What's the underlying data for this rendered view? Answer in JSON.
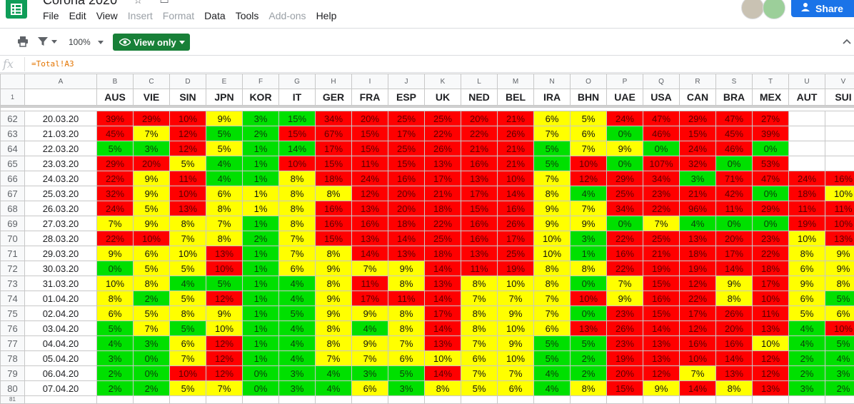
{
  "app": {
    "doc_title": "Corona 2020",
    "menu": [
      {
        "label": "File",
        "enabled": true
      },
      {
        "label": "Edit",
        "enabled": true
      },
      {
        "label": "View",
        "enabled": true
      },
      {
        "label": "Insert",
        "enabled": false
      },
      {
        "label": "Format",
        "enabled": false
      },
      {
        "label": "Data",
        "enabled": true
      },
      {
        "label": "Tools",
        "enabled": true
      },
      {
        "label": "Add-ons",
        "enabled": false
      },
      {
        "label": "Help",
        "enabled": true
      }
    ],
    "share_label": "Share"
  },
  "toolbar": {
    "zoom": "100%",
    "view_only_label": "View only"
  },
  "formula_bar": {
    "fx_label": "fx",
    "formula": "=Total!A3"
  },
  "colors": {
    "r": "#ff0000",
    "y": "#ffff00",
    "g": "#00e000",
    "brand_green": "#0f9d58",
    "share_blue": "#1a73e8",
    "view_only_green": "#188038"
  },
  "sheet": {
    "column_letters": [
      "A",
      "B",
      "C",
      "D",
      "E",
      "F",
      "G",
      "H",
      "I",
      "J",
      "K",
      "L",
      "M",
      "N",
      "O",
      "P",
      "Q",
      "R",
      "S",
      "T",
      "U",
      "V"
    ],
    "header_row_number": "1",
    "header_cells": [
      "",
      "AUS",
      "VIE",
      "SIN",
      "JPN",
      "KOR",
      "IT",
      "GER",
      "FRA",
      "ESP",
      "UK",
      "NED",
      "BEL",
      "IRA",
      "BHN",
      "UAE",
      "USA",
      "CAN",
      "BRA",
      "MEX",
      "AUT",
      "SUI"
    ],
    "rows": [
      {
        "num": "62",
        "date": "20.03.20",
        "vals": [
          "39%",
          "29%",
          "10%",
          "9%",
          "3%",
          "15%",
          "34%",
          "20%",
          "25%",
          "25%",
          "20%",
          "21%",
          "6%",
          "5%",
          "24%",
          "47%",
          "29%",
          "47%",
          "27%",
          "",
          ""
        ],
        "colors": "rrryggrrrrrryyrrrrrww"
      },
      {
        "num": "63",
        "date": "21.03.20",
        "vals": [
          "45%",
          "7%",
          "12%",
          "5%",
          "2%",
          "15%",
          "67%",
          "15%",
          "17%",
          "22%",
          "22%",
          "26%",
          "7%",
          "6%",
          "0%",
          "46%",
          "15%",
          "45%",
          "39%",
          "",
          ""
        ],
        "colors": "ryrggrrrrrrryygrrrrww"
      },
      {
        "num": "64",
        "date": "22.03.20",
        "vals": [
          "5%",
          "3%",
          "12%",
          "5%",
          "1%",
          "14%",
          "17%",
          "15%",
          "25%",
          "26%",
          "21%",
          "21%",
          "5%",
          "7%",
          "9%",
          "0%",
          "24%",
          "46%",
          "0%",
          "",
          ""
        ],
        "colors": "ggryggrrrrrrgyygrrgww"
      },
      {
        "num": "65",
        "date": "23.03.20",
        "vals": [
          "29%",
          "20%",
          "5%",
          "4%",
          "1%",
          "10%",
          "15%",
          "11%",
          "15%",
          "13%",
          "16%",
          "21%",
          "5%",
          "10%",
          "0%",
          "107%",
          "32%",
          "0%",
          "53%",
          "",
          ""
        ],
        "colors": "rryggrrrrrrrgrgrrgrww"
      },
      {
        "num": "66",
        "date": "24.03.20",
        "vals": [
          "22%",
          "9%",
          "11%",
          "4%",
          "1%",
          "8%",
          "18%",
          "24%",
          "16%",
          "17%",
          "13%",
          "10%",
          "7%",
          "12%",
          "29%",
          "34%",
          "3%",
          "71%",
          "47%",
          "24%",
          "16%"
        ],
        "colors": "ryrggyrrrrrryrrrgrrrr"
      },
      {
        "num": "67",
        "date": "25.03.20",
        "vals": [
          "32%",
          "9%",
          "10%",
          "6%",
          "1%",
          "8%",
          "8%",
          "12%",
          "20%",
          "21%",
          "17%",
          "14%",
          "8%",
          "4%",
          "25%",
          "23%",
          "21%",
          "42%",
          "0%",
          "18%",
          "10%"
        ],
        "colors": "ryryyyyrrrrrygrrrrgry"
      },
      {
        "num": "68",
        "date": "26.03.20",
        "vals": [
          "24%",
          "5%",
          "13%",
          "8%",
          "1%",
          "8%",
          "16%",
          "13%",
          "20%",
          "18%",
          "15%",
          "16%",
          "9%",
          "7%",
          "34%",
          "22%",
          "96%",
          "11%",
          "29%",
          "11%",
          "11%"
        ],
        "colors": "ryryyyrrrrrryyrrrrrrr"
      },
      {
        "num": "69",
        "date": "27.03.20",
        "vals": [
          "7%",
          "9%",
          "8%",
          "7%",
          "1%",
          "8%",
          "16%",
          "16%",
          "18%",
          "22%",
          "16%",
          "26%",
          "9%",
          "9%",
          "0%",
          "7%",
          "4%",
          "0%",
          "0%",
          "19%",
          "10%"
        ],
        "colors": "yyyygyrrrrrryygygggrr"
      },
      {
        "num": "70",
        "date": "28.03.20",
        "vals": [
          "22%",
          "10%",
          "7%",
          "8%",
          "2%",
          "7%",
          "15%",
          "13%",
          "14%",
          "25%",
          "16%",
          "17%",
          "10%",
          "3%",
          "22%",
          "25%",
          "13%",
          "20%",
          "23%",
          "10%",
          "13%"
        ],
        "colors": "rryygyrrrrrrygrrrrryr"
      },
      {
        "num": "71",
        "date": "29.03.20",
        "vals": [
          "9%",
          "6%",
          "10%",
          "13%",
          "1%",
          "7%",
          "8%",
          "14%",
          "13%",
          "18%",
          "13%",
          "25%",
          "10%",
          "1%",
          "16%",
          "21%",
          "18%",
          "17%",
          "22%",
          "8%",
          "9%"
        ],
        "colors": "yyyrgyyrrrrrygrrrrryy"
      },
      {
        "num": "72",
        "date": "30.03.20",
        "vals": [
          "0%",
          "5%",
          "5%",
          "10%",
          "1%",
          "6%",
          "9%",
          "7%",
          "9%",
          "14%",
          "11%",
          "19%",
          "8%",
          "8%",
          "22%",
          "19%",
          "19%",
          "14%",
          "18%",
          "6%",
          "9%"
        ],
        "colors": "gyyrgyyyyrrryyrrrrryy"
      },
      {
        "num": "73",
        "date": "31.03.20",
        "vals": [
          "10%",
          "8%",
          "4%",
          "5%",
          "1%",
          "4%",
          "8%",
          "11%",
          "8%",
          "13%",
          "8%",
          "10%",
          "8%",
          "0%",
          "7%",
          "15%",
          "12%",
          "9%",
          "17%",
          "9%",
          "8%"
        ],
        "colors": "yyggggyryryyygyrryryy"
      },
      {
        "num": "74",
        "date": "01.04.20",
        "vals": [
          "8%",
          "2%",
          "5%",
          "12%",
          "1%",
          "4%",
          "9%",
          "17%",
          "11%",
          "14%",
          "7%",
          "7%",
          "7%",
          "10%",
          "9%",
          "16%",
          "22%",
          "8%",
          "10%",
          "6%",
          "5%"
        ],
        "colors": "ygyrggyrrryyyryrryryg"
      },
      {
        "num": "75",
        "date": "02.04.20",
        "vals": [
          "6%",
          "5%",
          "8%",
          "9%",
          "1%",
          "5%",
          "9%",
          "9%",
          "8%",
          "17%",
          "8%",
          "9%",
          "7%",
          "0%",
          "23%",
          "15%",
          "17%",
          "26%",
          "11%",
          "5%",
          "6%"
        ],
        "colors": "yyyyggyyyryyygrrrrryy"
      },
      {
        "num": "76",
        "date": "03.04.20",
        "vals": [
          "5%",
          "7%",
          "5%",
          "10%",
          "1%",
          "4%",
          "8%",
          "4%",
          "8%",
          "14%",
          "8%",
          "10%",
          "6%",
          "13%",
          "26%",
          "14%",
          "12%",
          "20%",
          "13%",
          "4%",
          "10%"
        ],
        "colors": "gygyggygyryyyrrrrrrgr"
      },
      {
        "num": "77",
        "date": "04.04.20",
        "vals": [
          "4%",
          "3%",
          "6%",
          "12%",
          "1%",
          "4%",
          "8%",
          "9%",
          "7%",
          "13%",
          "7%",
          "9%",
          "5%",
          "5%",
          "23%",
          "13%",
          "16%",
          "16%",
          "10%",
          "4%",
          "5%"
        ],
        "colors": "ggyrggyyyryyggrrrrygg"
      },
      {
        "num": "78",
        "date": "05.04.20",
        "vals": [
          "3%",
          "0%",
          "7%",
          "12%",
          "1%",
          "4%",
          "7%",
          "7%",
          "6%",
          "10%",
          "6%",
          "10%",
          "5%",
          "2%",
          "19%",
          "13%",
          "10%",
          "14%",
          "12%",
          "2%",
          "4%"
        ],
        "colors": "ggyrggyyyyyyggrrrrrgg"
      },
      {
        "num": "79",
        "date": "06.04.20",
        "vals": [
          "2%",
          "0%",
          "10%",
          "12%",
          "0%",
          "3%",
          "4%",
          "3%",
          "5%",
          "14%",
          "7%",
          "7%",
          "4%",
          "2%",
          "20%",
          "12%",
          "7%",
          "13%",
          "12%",
          "2%",
          "3%"
        ],
        "colors": "ggrrgggggryyggrryrrgg"
      },
      {
        "num": "80",
        "date": "07.04.20",
        "vals": [
          "2%",
          "2%",
          "5%",
          "7%",
          "0%",
          "3%",
          "4%",
          "6%",
          "3%",
          "8%",
          "5%",
          "6%",
          "4%",
          "8%",
          "15%",
          "9%",
          "14%",
          "8%",
          "13%",
          "3%",
          "2%"
        ],
        "colors": "ggyygggygyyygyryryrgg"
      }
    ],
    "next_row_number": "81"
  }
}
